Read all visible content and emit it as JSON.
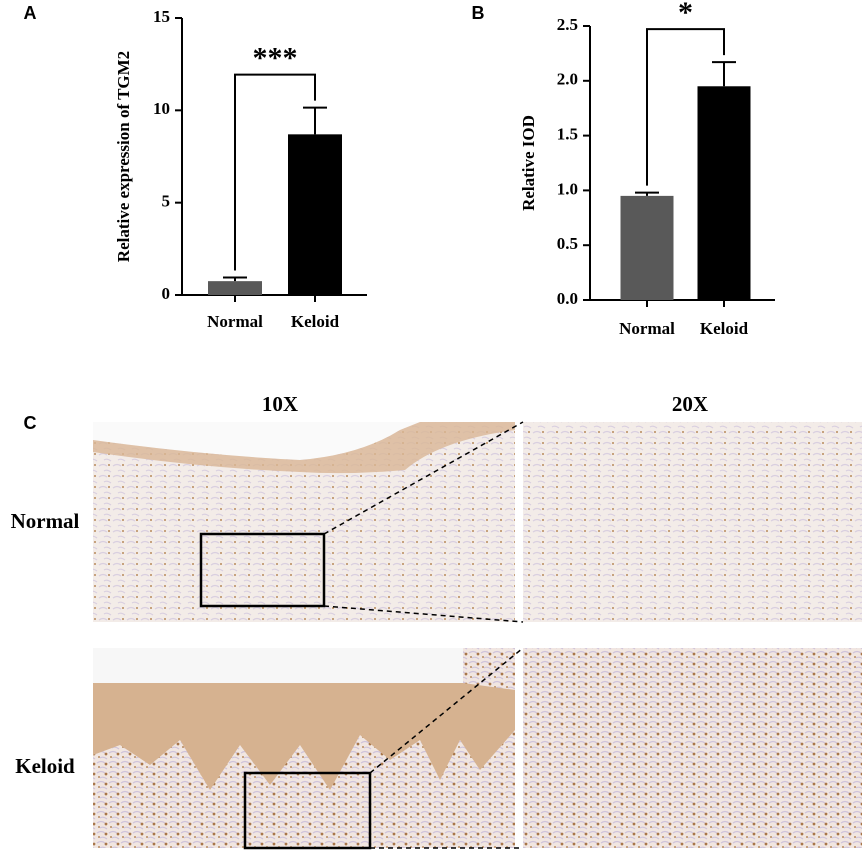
{
  "chart_data": [
    {
      "type": "bar",
      "panel_label": "A",
      "ylabel": "Relative expression of TGM2",
      "categories": [
        "Normal",
        "Keloid"
      ],
      "values": [
        0.75,
        8.7
      ],
      "errors": [
        0.2,
        1.45
      ],
      "colors": [
        "#595959",
        "#000000"
      ],
      "ylim": [
        0,
        15
      ],
      "yticks": [
        0,
        5,
        10,
        15
      ],
      "grid": false,
      "annotation": "***"
    },
    {
      "type": "bar",
      "panel_label": "B",
      "ylabel": "Relative IOD",
      "categories": [
        "Normal",
        "Keloid"
      ],
      "values": [
        0.95,
        1.95
      ],
      "errors": [
        0.03,
        0.22
      ],
      "colors": [
        "#595959",
        "#000000"
      ],
      "ylim": [
        0,
        2.5
      ],
      "yticks": [
        {
          "value": 0,
          "label": "0.0"
        },
        {
          "value": 0.5,
          "label": "0.5"
        },
        {
          "value": 1,
          "label": "1.0"
        },
        {
          "value": 1.5,
          "label": "1.5"
        },
        {
          "value": 2,
          "label": "2.0"
        },
        {
          "value": 2.5,
          "label": "2.5"
        }
      ],
      "grid": false,
      "annotation": "*"
    }
  ],
  "panel_c": {
    "label": "C",
    "columns": [
      "10X",
      "20X"
    ],
    "rows": [
      "Normal",
      "Keloid"
    ]
  }
}
